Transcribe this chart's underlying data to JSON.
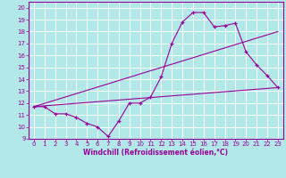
{
  "xlabel": "Windchill (Refroidissement éolien,°C)",
  "bg_color": "#b2e8e8",
  "line_color": "#990099",
  "grid_color": "#ffffff",
  "xlim": [
    -0.5,
    23.5
  ],
  "ylim": [
    9,
    20.5
  ],
  "xticks": [
    0,
    1,
    2,
    3,
    4,
    5,
    6,
    7,
    8,
    9,
    10,
    11,
    12,
    13,
    14,
    15,
    16,
    17,
    18,
    19,
    20,
    21,
    22,
    23
  ],
  "yticks": [
    9,
    10,
    11,
    12,
    13,
    14,
    15,
    16,
    17,
    18,
    19,
    20
  ],
  "line1_x": [
    0,
    1,
    2,
    3,
    4,
    5,
    6,
    7,
    8,
    9,
    10,
    11,
    12,
    13,
    14,
    15,
    16,
    17,
    18,
    19,
    20,
    21,
    22,
    23
  ],
  "line1_y": [
    11.7,
    11.7,
    11.1,
    11.1,
    10.8,
    10.3,
    10.0,
    9.2,
    10.5,
    12.0,
    12.0,
    12.5,
    14.2,
    17.0,
    18.8,
    19.6,
    19.6,
    18.4,
    18.5,
    18.7,
    16.3,
    15.2,
    14.3,
    13.3
  ],
  "line2_x": [
    0,
    23
  ],
  "line2_y": [
    11.7,
    13.3
  ],
  "line3_x": [
    0,
    23
  ],
  "line3_y": [
    11.7,
    18.0
  ],
  "tick_fontsize": 5,
  "xlabel_fontsize": 5.5
}
